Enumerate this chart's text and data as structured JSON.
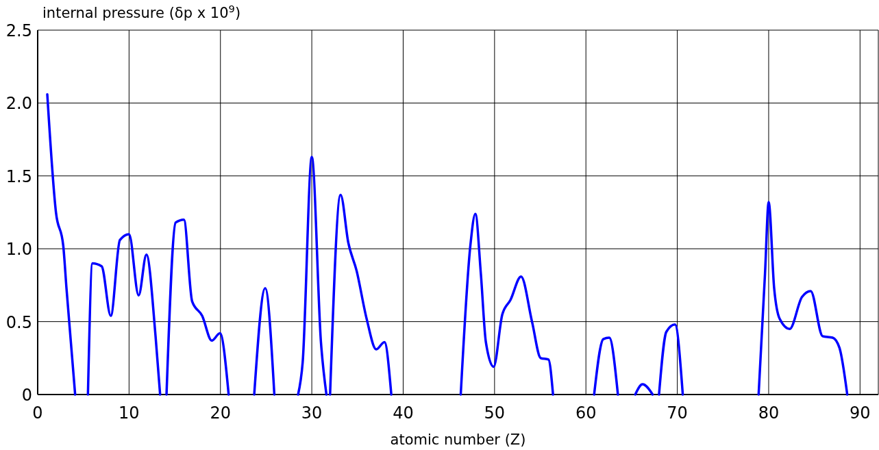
{
  "chart_data": {
    "type": "line",
    "xlabel": "atomic number (Z)",
    "ylabel": "internal pressure (δp x 10$^{9}$)",
    "xlim": [
      0,
      92
    ],
    "xticks": [
      0,
      10,
      20,
      30,
      40,
      50,
      60,
      70,
      80,
      90
    ],
    "ylim": [
      0,
      2.5
    ],
    "yticks": [
      {
        "value": 0,
        "label": "0"
      },
      0.5,
      {
        "value": 1,
        "label": "1.0"
      },
      1.5,
      {
        "value": 2,
        "label": "2.0"
      },
      2.5
    ],
    "grid": true,
    "line_style": "solid",
    "marker": "none",
    "series": [
      {
        "color": "#0000ff",
        "x": [
          1.05,
          2.0,
          2.8,
          3.15,
          4.1,
          4.8,
          5.5,
          6.0,
          7.0,
          8.0,
          9.0,
          10.0,
          11.05,
          11.9,
          12.9,
          13.4,
          13.7,
          14.1,
          15.1,
          16.0,
          16.9,
          18.0,
          19.05,
          19.95,
          20.9,
          22.0,
          23.7,
          24.9,
          25.9,
          27.0,
          28.5,
          29.0,
          30.0,
          31.0,
          31.6,
          31.8,
          32.0,
          33.15,
          34.0,
          34.9,
          36.0,
          37.05,
          37.95,
          38.7,
          42.0,
          46.3,
          47.35,
          47.9,
          48.5,
          49.05,
          49.9,
          50.85,
          51.75,
          52.9,
          54.1,
          55.05,
          55.9,
          56.4,
          58.0,
          60.9,
          61.9,
          62.55,
          63.5,
          64.5,
          65.4,
          66.2,
          67.3,
          67.6,
          68.0,
          68.8,
          69.75,
          70.6,
          75.0,
          78.9,
          79.6,
          80.0,
          80.6,
          81.2,
          82.3,
          83.65,
          84.6,
          85.9,
          87.0,
          87.75,
          88.6
        ],
        "values": [
          2.06,
          1.25,
          1.02,
          0.73,
          0,
          null,
          0,
          0.9,
          0.88,
          0.54,
          1.06,
          1.1,
          0.68,
          0.96,
          0.4,
          0,
          null,
          0,
          1.18,
          1.2,
          0.64,
          0.54,
          0.37,
          0.42,
          0,
          null,
          0,
          0.73,
          0,
          null,
          0,
          0.22,
          1.63,
          0.36,
          0,
          null,
          0,
          1.37,
          1.04,
          0.85,
          0.52,
          0.31,
          0.36,
          0,
          null,
          0,
          1.02,
          1.24,
          0.83,
          0.36,
          0.19,
          0.55,
          0.65,
          0.81,
          0.5,
          0.25,
          0.24,
          0,
          null,
          0,
          0.38,
          0.39,
          0,
          null,
          0,
          0.07,
          0,
          null,
          0,
          0.43,
          0.48,
          0,
          null,
          0,
          0.83,
          1.32,
          0.73,
          0.52,
          0.45,
          0.67,
          0.71,
          0.4,
          0.39,
          0.32,
          0
        ]
      }
    ]
  }
}
